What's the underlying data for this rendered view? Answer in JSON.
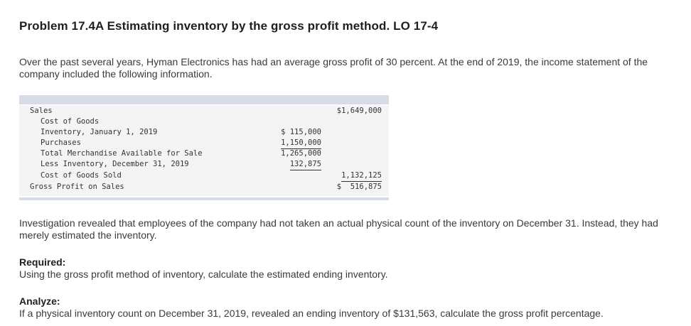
{
  "title": "Problem 17.4A Estimating inventory by the gross profit method. LO 17-4",
  "intro": "Over the past several years, Hyman Electronics has had an average gross profit of 30 percent. At the end of 2019, the income statement of the company included the following information.",
  "statement": {
    "sales_label": "Sales",
    "sales_value": "$1,649,000",
    "cogs_label": "Cost of Goods",
    "inv_jan_label": "Inventory, January 1, 2019",
    "inv_jan_value": "$ 115,000",
    "purchases_label": "Purchases",
    "purchases_value": "1,150,000",
    "tmas_label": "Total Merchandise Available for Sale",
    "tmas_value": "1,265,000",
    "less_inv_label": "Less Inventory, December 31, 2019",
    "less_inv_value": "132,875",
    "cogs_sold_label": "Cost of Goods Sold",
    "cogs_sold_value": "1,132,125",
    "gross_label": "Gross Profit on Sales",
    "gross_value": "$  516,875"
  },
  "investigation": "Investigation revealed that employees of the company had not taken an actual physical count of the inventory on December 31. Instead, they had merely estimated the inventory.",
  "required_label": "Required:",
  "required_text": "Using the gross profit method of inventory, calculate the estimated ending inventory.",
  "analyze_label": "Analyze:",
  "analyze_text": "If a physical inventory count on December 31, 2019, revealed an ending inventory of $131,563, calculate the gross profit percentage."
}
